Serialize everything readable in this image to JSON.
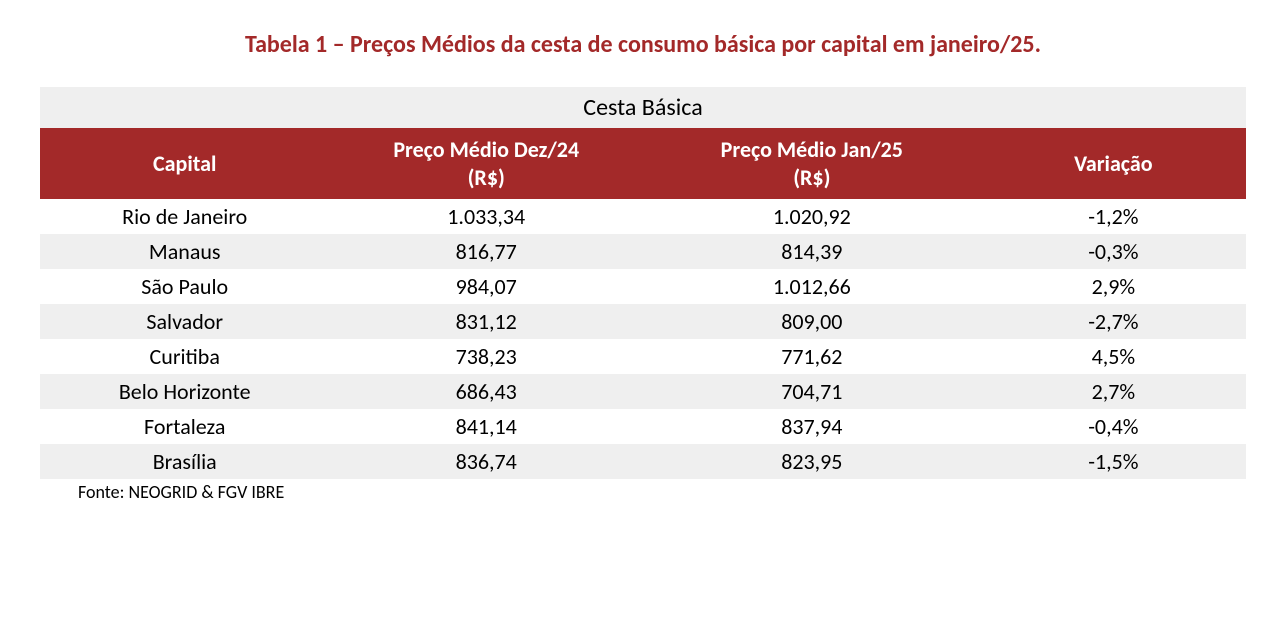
{
  "title": {
    "text": "Tabela 1 – Preços Médios da cesta de consumo básica por capital em janeiro/25.",
    "color": "#a32929",
    "fontsize": 24,
    "fontweight": "bold"
  },
  "table": {
    "type": "table",
    "super_header": "Cesta Básica",
    "super_header_bg": "#efefef",
    "header_bg": "#a32929",
    "header_color": "#ffffff",
    "row_alt_bg": "#efefef",
    "row_bg": "#ffffff",
    "text_color": "#000000",
    "fontsize": 22,
    "columns": [
      {
        "label_line1": "Capital",
        "label_line2": "",
        "width": "24%",
        "align": "center"
      },
      {
        "label_line1": "Preço Médio Dez/24",
        "label_line2": "(R$)",
        "width": "26%",
        "align": "center"
      },
      {
        "label_line1": "Preço Médio Jan/25",
        "label_line2": "(R$)",
        "width": "28%",
        "align": "center"
      },
      {
        "label_line1": "Variação",
        "label_line2": "",
        "width": "22%",
        "align": "center"
      }
    ],
    "rows": [
      [
        "Rio de Janeiro",
        "1.033,34",
        "1.020,92",
        "-1,2%"
      ],
      [
        "Manaus",
        "816,77",
        "814,39",
        "-0,3%"
      ],
      [
        "São Paulo",
        "984,07",
        "1.012,66",
        "2,9%"
      ],
      [
        "Salvador",
        "831,12",
        "809,00",
        "-2,7%"
      ],
      [
        "Curitiba",
        "738,23",
        "771,62",
        "4,5%"
      ],
      [
        "Belo Horizonte",
        "686,43",
        "704,71",
        "2,7%"
      ],
      [
        "Fortaleza",
        "841,14",
        "837,94",
        "-0,4%"
      ],
      [
        "Brasília",
        "836,74",
        "823,95",
        "-1,5%"
      ]
    ]
  },
  "source": {
    "text": "Fonte: NEOGRID & FGV IBRE",
    "fontsize": 18,
    "color": "#000000"
  }
}
